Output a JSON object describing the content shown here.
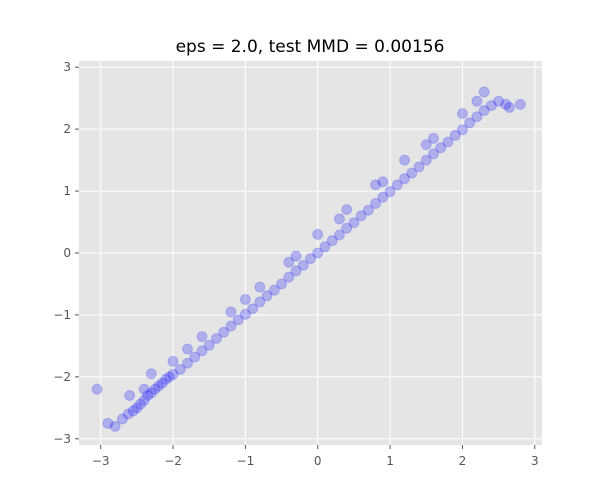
{
  "chart_data": {
    "type": "scatter",
    "title": "eps = 2.0, test MMD = 0.00156",
    "xlabel": "",
    "ylabel": "",
    "xlim": [
      -3.3,
      3.1
    ],
    "ylim": [
      -3.1,
      3.1
    ],
    "x_ticks": [
      {
        "value": -3,
        "label": "−3"
      },
      {
        "value": -2,
        "label": "−2"
      },
      {
        "value": -1,
        "label": "−1"
      },
      {
        "value": 0,
        "label": "0"
      },
      {
        "value": 1,
        "label": "1"
      },
      {
        "value": 2,
        "label": "2"
      },
      {
        "value": 3,
        "label": "3"
      }
    ],
    "y_ticks": [
      {
        "value": -3,
        "label": "−3"
      },
      {
        "value": -2,
        "label": "−2"
      },
      {
        "value": -1,
        "label": "−1"
      },
      {
        "value": 0,
        "label": "0"
      },
      {
        "value": 1,
        "label": "1"
      },
      {
        "value": 2,
        "label": "2"
      },
      {
        "value": 3,
        "label": "3"
      }
    ],
    "grid": true,
    "style": "ggplot",
    "series": [
      {
        "color": "#0000ff",
        "alpha": 0.06,
        "x": [
          -2.8,
          -2.7,
          -2.62,
          -2.55,
          -2.5,
          -2.45,
          -2.4,
          -2.35,
          -2.3,
          -2.25,
          -2.2,
          -2.15,
          -2.1,
          -2.05,
          -2.0,
          -1.9,
          -1.8,
          -1.7,
          -1.6,
          -1.5,
          -1.4,
          -1.3,
          -1.2,
          -1.1,
          -1.0,
          -0.9,
          -0.8,
          -0.7,
          -0.6,
          -0.5,
          -0.4,
          -0.3,
          -0.2,
          -0.1,
          0.0,
          0.1,
          0.2,
          0.3,
          0.4,
          0.5,
          0.6,
          0.7,
          0.8,
          0.9,
          1.0,
          1.1,
          1.2,
          1.3,
          1.4,
          1.5,
          1.6,
          1.7,
          1.8,
          1.9,
          2.0,
          2.1,
          2.2,
          2.3,
          2.4,
          2.5,
          2.6,
          -3.05,
          -2.9,
          -2.6,
          -2.3,
          -2.0,
          -1.6,
          -1.2,
          -0.8,
          -0.4,
          0.0,
          0.4,
          0.8,
          1.2,
          1.6,
          2.0,
          2.3,
          2.65,
          2.8,
          -2.4,
          -1.8,
          -1.0,
          -0.3,
          0.3,
          0.9,
          1.5,
          2.2
        ],
        "y": [
          -2.8,
          -2.68,
          -2.6,
          -2.55,
          -2.5,
          -2.44,
          -2.38,
          -2.3,
          -2.26,
          -2.2,
          -2.15,
          -2.1,
          -2.04,
          -2.0,
          -1.96,
          -1.88,
          -1.78,
          -1.68,
          -1.58,
          -1.49,
          -1.38,
          -1.28,
          -1.18,
          -1.08,
          -0.99,
          -0.9,
          -0.79,
          -0.69,
          -0.6,
          -0.5,
          -0.39,
          -0.29,
          -0.2,
          -0.09,
          0.0,
          0.1,
          0.2,
          0.29,
          0.4,
          0.49,
          0.6,
          0.69,
          0.8,
          0.9,
          0.99,
          1.1,
          1.2,
          1.29,
          1.39,
          1.5,
          1.6,
          1.7,
          1.79,
          1.9,
          1.99,
          2.1,
          2.2,
          2.3,
          2.38,
          2.45,
          2.4,
          -2.2,
          -2.75,
          -2.3,
          -1.95,
          -1.75,
          -1.35,
          -0.95,
          -0.55,
          -0.15,
          0.3,
          0.7,
          1.1,
          1.5,
          1.85,
          2.25,
          2.6,
          2.35,
          2.4,
          -2.2,
          -1.55,
          -0.75,
          -0.05,
          0.55,
          1.15,
          1.75,
          2.45
        ]
      }
    ]
  }
}
